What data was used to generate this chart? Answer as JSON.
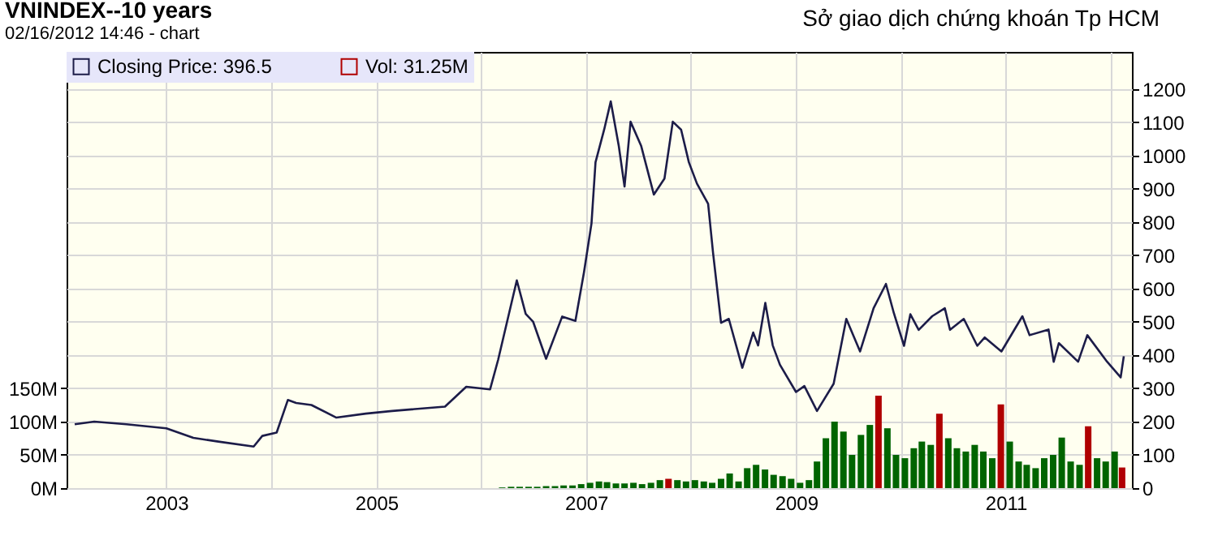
{
  "chart_data": {
    "type": "line",
    "title": "VNINDEX--10 years",
    "subtitle": "02/16/2012 14:46 -  chart",
    "annotations": [
      "Sở giao dịch chứng khoán Tp HCM"
    ],
    "xlim": [
      "2002-02-16",
      "2012-02-16"
    ],
    "xticks": [
      {
        "value": "2003-01-01",
        "label": "2003"
      },
      {
        "value": "2004-01-01",
        "label": null
      },
      {
        "value": "2005-01-01",
        "label": "2005"
      },
      {
        "value": "2006-01-01",
        "label": null
      },
      {
        "value": "2007-01-01",
        "label": "2007"
      },
      {
        "value": "2008-01-01",
        "label": null
      },
      {
        "value": "2009-01-01",
        "label": "2009"
      },
      {
        "value": "2010-01-01",
        "label": null
      },
      {
        "value": "2011-01-01",
        "label": "2011"
      },
      {
        "value": "2012-01-01",
        "label": null
      }
    ],
    "ylim": [
      0,
      1312
    ],
    "yticks": [
      0,
      100,
      200,
      300,
      400,
      500,
      600,
      700,
      800,
      900,
      1000,
      1100,
      1200
    ],
    "y2lim": [
      0,
      656
    ],
    "y2ticks": [
      {
        "value": 0,
        "label": "0M"
      },
      {
        "value": 50,
        "label": "50M"
      },
      {
        "value": 100,
        "label": "100M"
      },
      {
        "value": 150,
        "label": "150M"
      }
    ],
    "grid": true,
    "legend": "top left",
    "series": [
      {
        "name": "Closing Price: 396.5",
        "color": "#1c1c48",
        "x": [
          "2002-02-16",
          "2002-04-25",
          "2002-08-15",
          "2003-01-01",
          "2003-04-05",
          "2003-07-01",
          "2003-11-01",
          "2003-12-01",
          "2004-01-20",
          "2004-02-28",
          "2004-03-28",
          "2004-05-20",
          "2004-08-15",
          "2004-11-25",
          "2005-02-25",
          "2005-08-28",
          "2005-11-10",
          "2006-02-01",
          "2006-03-01",
          "2006-05-05",
          "2006-06-05",
          "2006-07-01",
          "2006-08-15",
          "2006-10-10",
          "2006-11-25",
          "2006-12-25",
          "2007-01-20",
          "2007-02-03",
          "2007-03-05",
          "2007-03-28",
          "2007-04-25",
          "2007-05-15",
          "2007-06-05",
          "2007-07-12",
          "2007-08-25",
          "2007-10-01",
          "2007-10-30",
          "2007-11-28",
          "2007-12-25",
          "2008-01-22",
          "2008-03-01",
          "2008-03-18",
          "2008-04-15",
          "2008-05-12",
          "2008-06-28",
          "2008-08-05",
          "2008-08-22",
          "2008-09-16",
          "2008-10-12",
          "2008-11-06",
          "2009-01-01",
          "2009-01-30",
          "2009-03-15",
          "2009-05-12",
          "2009-06-25",
          "2009-08-12",
          "2009-09-28",
          "2009-11-10",
          "2009-12-08",
          "2010-01-12",
          "2010-02-03",
          "2010-03-04",
          "2010-04-20",
          "2010-06-03",
          "2010-06-21",
          "2010-08-08",
          "2010-09-24",
          "2010-10-20",
          "2010-12-17",
          "2011-02-28",
          "2011-03-25",
          "2011-05-30",
          "2011-06-17",
          "2011-07-05",
          "2011-09-10",
          "2011-10-12",
          "2011-12-20",
          "2012-02-05",
          "2012-02-16"
        ],
        "values": [
          192,
          200,
          192,
          180,
          151,
          140,
          125,
          157,
          167,
          265,
          256,
          250,
          212,
          224,
          232,
          245,
          305,
          297,
          386,
          625,
          524,
          500,
          389,
          516,
          503,
          650,
          796,
          980,
          1078,
          1163,
          1029,
          907,
          1102,
          1029,
          883,
          931,
          1102,
          1078,
          980,
          916,
          855,
          709,
          497,
          509,
          362,
          468,
          429,
          557,
          429,
          371,
          289,
          307,
          232,
          314,
          509,
          411,
          541,
          614,
          525,
          428,
          523,
          476,
          517,
          541,
          476,
          509,
          428,
          453,
          411,
          517,
          460,
          477,
          380,
          436,
          380,
          460,
          380,
          333,
          396.5
        ]
      },
      {
        "name": "Vol: 31.25M",
        "type": "bar",
        "axis": "y2",
        "color": "#b00000",
        "x": [
          "2006-03-15",
          "2006-04-15",
          "2006-05-15",
          "2006-06-15",
          "2006-07-15",
          "2006-08-15",
          "2006-09-15",
          "2006-10-15",
          "2006-11-15",
          "2006-12-15",
          "2007-01-15",
          "2007-02-15",
          "2007-03-15",
          "2007-04-15",
          "2007-05-15",
          "2007-06-15",
          "2007-07-15",
          "2007-08-15",
          "2007-09-15",
          "2007-10-15",
          "2007-11-15",
          "2007-12-15",
          "2008-01-15",
          "2008-02-15",
          "2008-03-15",
          "2008-04-15",
          "2008-05-15",
          "2008-06-15",
          "2008-07-15",
          "2008-08-15",
          "2008-09-15",
          "2008-10-15",
          "2008-11-15",
          "2008-12-15",
          "2009-01-15",
          "2009-02-15",
          "2009-03-15",
          "2009-04-15",
          "2009-05-15",
          "2009-06-15",
          "2009-07-15",
          "2009-08-15",
          "2009-09-15",
          "2009-10-15",
          "2009-11-15",
          "2009-12-15",
          "2010-01-15",
          "2010-02-15",
          "2010-03-15",
          "2010-04-15",
          "2010-05-15",
          "2010-06-15",
          "2010-07-15",
          "2010-08-15",
          "2010-09-15",
          "2010-10-15",
          "2010-11-15",
          "2010-12-15",
          "2011-01-15",
          "2011-02-15",
          "2011-03-15",
          "2011-04-15",
          "2011-05-15",
          "2011-06-15",
          "2011-07-15",
          "2011-08-15",
          "2011-09-15",
          "2011-10-15",
          "2011-11-15",
          "2011-12-15",
          "2012-01-15",
          "2012-02-10"
        ],
        "values": [
          1,
          2,
          2,
          2,
          2,
          3,
          3,
          4,
          4,
          6,
          8,
          10,
          9,
          7,
          7,
          8,
          6,
          8,
          12,
          14,
          12,
          10,
          12,
          10,
          8,
          14,
          22,
          10,
          30,
          35,
          28,
          20,
          18,
          14,
          8,
          12,
          40,
          75,
          100,
          85,
          50,
          80,
          95,
          139,
          90,
          50,
          45,
          60,
          70,
          65,
          112,
          75,
          60,
          55,
          65,
          55,
          45,
          126,
          70,
          40,
          35,
          30,
          45,
          50,
          76,
          40,
          35,
          93,
          45,
          40,
          55,
          31
        ],
        "colors": [
          "#006400",
          "#006400",
          "#006400",
          "#006400",
          "#006400",
          "#006400",
          "#006400",
          "#006400",
          "#006400",
          "#006400",
          "#006400",
          "#006400",
          "#006400",
          "#006400",
          "#006400",
          "#006400",
          "#006400",
          "#006400",
          "#006400",
          "#b00000",
          "#006400",
          "#006400",
          "#006400",
          "#006400",
          "#006400",
          "#006400",
          "#006400",
          "#006400",
          "#006400",
          "#006400",
          "#006400",
          "#006400",
          "#006400",
          "#006400",
          "#006400",
          "#006400",
          "#006400",
          "#006400",
          "#006400",
          "#006400",
          "#006400",
          "#006400",
          "#006400",
          "#b00000",
          "#006400",
          "#006400",
          "#006400",
          "#006400",
          "#006400",
          "#006400",
          "#b00000",
          "#006400",
          "#006400",
          "#006400",
          "#006400",
          "#006400",
          "#006400",
          "#b00000",
          "#006400",
          "#006400",
          "#006400",
          "#006400",
          "#006400",
          "#006400",
          "#006400",
          "#006400",
          "#006400",
          "#b00000",
          "#006400",
          "#006400",
          "#006400",
          "#b00000"
        ]
      }
    ]
  }
}
